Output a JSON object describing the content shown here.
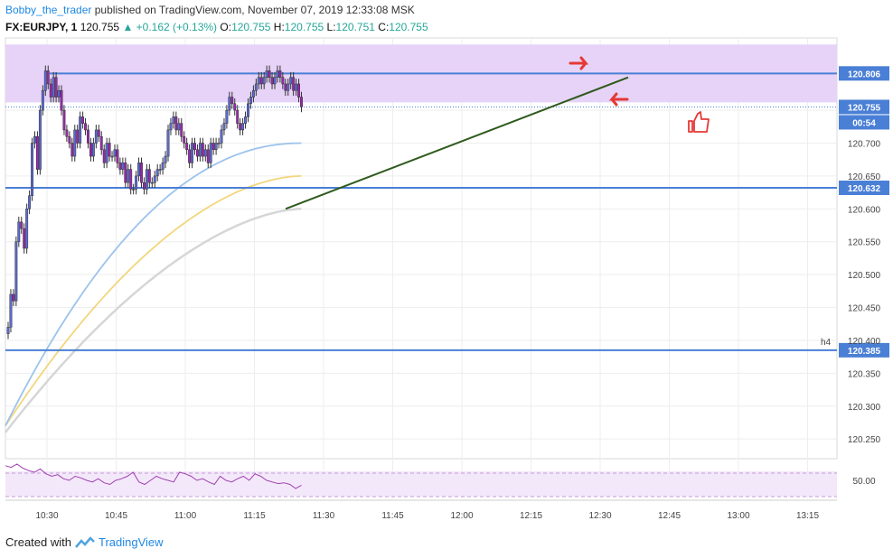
{
  "header": {
    "author": "Bobby_the_trader",
    "published": "published on TradingView.com, November 07, 2019 12:33:08 MSK",
    "symbol": "FX:EURJPY, 1",
    "last": "120.755",
    "change": "▲ +0.162 (+0.13%)",
    "o_label": "O:",
    "o": "120.755",
    "h_label": "H:",
    "h": "120.755",
    "l_label": "L:",
    "l": "120.751",
    "c_label": "C:",
    "c": "120.755"
  },
  "footer": {
    "created": "Created with",
    "brand": "TradingView"
  },
  "colors": {
    "bull": "#5b6bd6",
    "bear": "#9c27b0",
    "wick": "#333333",
    "hline": "#4a7fd6",
    "zone": "#e6d3f7",
    "trend": "#2e5a1c",
    "ma_fast": "#9cc3ec",
    "ma_mid": "#f2d67d",
    "ma_slow": "#d6d6d6",
    "rsi": "#a040b0",
    "arrow": "#e53935"
  },
  "chart_data": {
    "type": "candlestick",
    "x_ticks": [
      "10:30",
      "10:45",
      "11:00",
      "11:15",
      "11:30",
      "11:45",
      "12:00",
      "12:15",
      "12:30",
      "12:45",
      "13:00",
      "13:15"
    ],
    "y_ticks": [
      120.25,
      120.3,
      120.35,
      120.4,
      120.45,
      120.5,
      120.55,
      120.6,
      120.65,
      120.7,
      120.75,
      120.8
    ],
    "ylim": [
      120.22,
      120.86
    ],
    "h_levels": [
      120.806,
      120.632,
      120.385
    ],
    "h_level_labels": [
      "120.806",
      "120.632",
      "120.385"
    ],
    "current_price": "120.755",
    "countdown": "00:54",
    "h4_label": "h4",
    "resistance_zone": [
      120.762,
      120.85
    ],
    "trendline": [
      [
        120.6,
        120.6
      ],
      [
        120.8,
        120.8
      ]
    ],
    "closes": [
      120.42,
      120.47,
      120.46,
      120.55,
      120.58,
      120.57,
      120.54,
      120.6,
      120.62,
      120.7,
      120.71,
      120.66,
      120.75,
      120.78,
      120.81,
      120.79,
      120.77,
      120.8,
      120.77,
      120.78,
      120.75,
      120.72,
      120.71,
      120.7,
      120.68,
      120.72,
      120.7,
      120.74,
      120.73,
      120.72,
      120.7,
      120.68,
      120.7,
      120.72,
      120.71,
      120.69,
      120.67,
      120.7,
      120.68,
      120.68,
      120.69,
      120.67,
      120.66,
      120.67,
      120.64,
      120.66,
      120.63,
      120.63,
      120.65,
      120.67,
      120.64,
      120.63,
      120.66,
      120.64,
      120.64,
      120.65,
      120.66,
      120.66,
      120.67,
      120.68,
      120.72,
      120.73,
      120.74,
      120.72,
      120.73,
      120.71,
      120.7,
      120.69,
      120.67,
      120.7,
      120.69,
      120.68,
      120.7,
      120.68,
      120.69,
      120.67,
      120.7,
      120.69,
      120.7,
      120.7,
      120.72,
      120.73,
      120.75,
      120.77,
      120.76,
      120.75,
      120.73,
      120.72,
      120.73,
      120.74,
      120.76,
      120.77,
      120.78,
      120.79,
      120.8,
      120.79,
      120.8,
      120.81,
      120.8,
      120.79,
      120.8,
      120.81,
      120.8,
      120.79,
      120.78,
      120.79,
      120.8,
      120.78,
      120.79,
      120.77,
      120.755
    ],
    "ma_fast": [
      120.27,
      120.7
    ],
    "ma_mid": [
      120.27,
      120.65
    ],
    "ma_slow": [
      120.26,
      120.6
    ],
    "rsi_ticks": [
      "50.00"
    ],
    "rsi_values": [
      68,
      66,
      70,
      65,
      62,
      60,
      64,
      58,
      55,
      57,
      52,
      50,
      55,
      53,
      50,
      48,
      52,
      47,
      45,
      50,
      52,
      55,
      60,
      48,
      45,
      50,
      55,
      52,
      50,
      48,
      60,
      58,
      55,
      50,
      52,
      48,
      45,
      55,
      50,
      48,
      52,
      55,
      50,
      58,
      55,
      50,
      48,
      46,
      47,
      45,
      40,
      44
    ]
  }
}
